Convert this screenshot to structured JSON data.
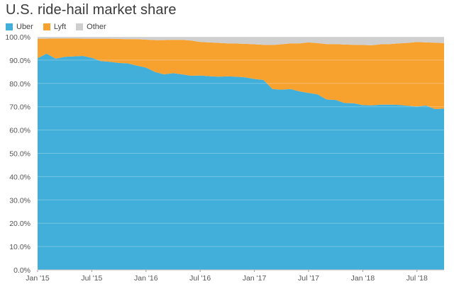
{
  "chart_data": {
    "type": "area",
    "stacked": true,
    "title": "U.S. ride-hail market share",
    "xlabel": "",
    "ylabel": "",
    "ylim": [
      0,
      100
    ],
    "yticks": [
      "0.0%",
      "10.0%",
      "20.0%",
      "30.0%",
      "40.0%",
      "50.0%",
      "60.0%",
      "70.0%",
      "80.0%",
      "90.0%",
      "100.0%"
    ],
    "xticks": [
      "Jan '15",
      "Jul '15",
      "Jan '16",
      "Jul '16",
      "Jan '17",
      "Jul '17",
      "Jan '18",
      "Jul '18"
    ],
    "legend_position": "top-left",
    "grid": true,
    "x": [
      "Jan '15",
      "Feb '15",
      "Mar '15",
      "Apr '15",
      "May '15",
      "Jun '15",
      "Jul '15",
      "Aug '15",
      "Sep '15",
      "Oct '15",
      "Nov '15",
      "Dec '15",
      "Jan '16",
      "Feb '16",
      "Mar '16",
      "Apr '16",
      "May '16",
      "Jun '16",
      "Jul '16",
      "Aug '16",
      "Sep '16",
      "Oct '16",
      "Nov '16",
      "Dec '16",
      "Jan '17",
      "Feb '17",
      "Mar '17",
      "Apr '17",
      "May '17",
      "Jun '17",
      "Jul '17",
      "Aug '17",
      "Sep '17",
      "Oct '17",
      "Nov '17",
      "Dec '17",
      "Jan '18",
      "Feb '18",
      "Mar '18",
      "Apr '18",
      "May '18",
      "Jun '18",
      "Jul '18",
      "Aug '18",
      "Sep '18",
      "Oct '18"
    ],
    "series": [
      {
        "name": "Uber",
        "color": "#41afd9",
        "values": [
          90.8,
          92.8,
          90.6,
          91.4,
          91.6,
          91.8,
          91.0,
          89.6,
          89.3,
          88.8,
          88.6,
          87.6,
          86.8,
          84.9,
          83.9,
          84.4,
          83.9,
          83.3,
          83.4,
          83.1,
          82.9,
          83.0,
          82.9,
          82.6,
          81.9,
          81.5,
          77.6,
          77.3,
          77.6,
          76.6,
          75.9,
          75.3,
          73.1,
          72.9,
          71.6,
          71.5,
          70.7,
          70.6,
          70.9,
          70.9,
          70.8,
          70.4,
          70.1,
          70.5,
          69.0,
          69.2
        ]
      },
      {
        "name": "Lyft",
        "color": "#f7a12f",
        "values": [
          8.4,
          6.4,
          8.7,
          7.9,
          7.7,
          7.4,
          8.2,
          9.6,
          9.9,
          10.3,
          10.4,
          11.4,
          12.0,
          13.7,
          14.7,
          14.3,
          14.8,
          15.1,
          14.4,
          14.5,
          14.5,
          14.2,
          14.2,
          14.4,
          14.9,
          15.1,
          18.9,
          19.5,
          19.6,
          20.6,
          21.7,
          22.0,
          23.8,
          24.0,
          25.1,
          25.1,
          25.8,
          25.8,
          25.9,
          26.0,
          26.4,
          27.0,
          27.7,
          27.1,
          28.5,
          28.1
        ]
      },
      {
        "name": "Other",
        "color": "#cfcfcf",
        "values": [
          0.8,
          0.8,
          0.7,
          0.7,
          0.7,
          0.8,
          0.8,
          0.8,
          0.8,
          0.9,
          1.0,
          1.0,
          1.2,
          1.4,
          1.4,
          1.3,
          1.3,
          1.6,
          2.2,
          2.4,
          2.6,
          2.8,
          2.9,
          3.0,
          3.2,
          3.4,
          3.5,
          3.2,
          2.8,
          2.8,
          2.4,
          2.7,
          3.1,
          3.1,
          3.3,
          3.4,
          3.5,
          3.6,
          3.2,
          3.1,
          2.8,
          2.6,
          2.2,
          2.4,
          2.5,
          2.7
        ]
      }
    ]
  }
}
